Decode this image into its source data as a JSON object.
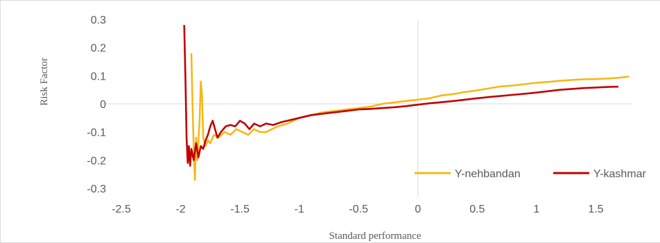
{
  "chart_data": {
    "type": "line",
    "title": "",
    "xlabel": "Standard performance",
    "ylabel": "Risk Factor",
    "xlim": [
      -2.5,
      2
    ],
    "ylim": [
      -0.3,
      0.3
    ],
    "x_ticks": [
      "-2.5",
      "-2",
      "-1.5",
      "-1",
      "-0.5",
      "0",
      "0.5",
      "1",
      "1.5"
    ],
    "y_ticks": [
      "0.3",
      "0.2",
      "0.1",
      "0",
      "-0.1",
      "-0.2",
      "-0.3"
    ],
    "grid": false,
    "legend_position": "bottom-right",
    "series": [
      {
        "name": "Y-nehbandan",
        "color": "#F5B915",
        "points": [
          [
            -1.91,
            0.18
          ],
          [
            -1.9,
            0.0
          ],
          [
            -1.89,
            -0.16
          ],
          [
            -1.88,
            -0.27
          ],
          [
            -1.87,
            -0.12
          ],
          [
            -1.86,
            -0.2
          ],
          [
            -1.84,
            -0.06
          ],
          [
            -1.83,
            0.08
          ],
          [
            -1.82,
            0.03
          ],
          [
            -1.81,
            -0.12
          ],
          [
            -1.79,
            -0.15
          ],
          [
            -1.77,
            -0.13
          ],
          [
            -1.75,
            -0.14
          ],
          [
            -1.72,
            -0.11
          ],
          [
            -1.68,
            -0.12
          ],
          [
            -1.63,
            -0.1
          ],
          [
            -1.58,
            -0.11
          ],
          [
            -1.53,
            -0.09
          ],
          [
            -1.48,
            -0.1
          ],
          [
            -1.43,
            -0.11
          ],
          [
            -1.38,
            -0.09
          ],
          [
            -1.33,
            -0.1
          ],
          [
            -1.28,
            -0.1
          ],
          [
            -1.23,
            -0.09
          ],
          [
            -1.18,
            -0.08
          ],
          [
            -1.1,
            -0.07
          ],
          [
            -1.0,
            -0.05
          ],
          [
            -0.9,
            -0.04
          ],
          [
            -0.8,
            -0.03
          ],
          [
            -0.7,
            -0.025
          ],
          [
            -0.6,
            -0.02
          ],
          [
            -0.5,
            -0.015
          ],
          [
            -0.4,
            -0.01
          ],
          [
            -0.3,
            0.0
          ],
          [
            -0.2,
            0.005
          ],
          [
            -0.1,
            0.01
          ],
          [
            0.0,
            0.015
          ],
          [
            0.1,
            0.02
          ],
          [
            0.2,
            0.03
          ],
          [
            0.3,
            0.035
          ],
          [
            0.4,
            0.042
          ],
          [
            0.5,
            0.048
          ],
          [
            0.6,
            0.055
          ],
          [
            0.7,
            0.062
          ],
          [
            0.8,
            0.065
          ],
          [
            0.9,
            0.07
          ],
          [
            1.0,
            0.075
          ],
          [
            1.1,
            0.078
          ],
          [
            1.2,
            0.082
          ],
          [
            1.3,
            0.085
          ],
          [
            1.4,
            0.087
          ],
          [
            1.5,
            0.088
          ],
          [
            1.6,
            0.09
          ],
          [
            1.7,
            0.093
          ],
          [
            1.78,
            0.097
          ]
        ]
      },
      {
        "name": "Y-kashmar",
        "color": "#C00000",
        "points": [
          [
            -1.97,
            0.28
          ],
          [
            -1.96,
            0.1
          ],
          [
            -1.95,
            -0.12
          ],
          [
            -1.94,
            -0.21
          ],
          [
            -1.93,
            -0.15
          ],
          [
            -1.92,
            -0.22
          ],
          [
            -1.91,
            -0.16
          ],
          [
            -1.89,
            -0.2
          ],
          [
            -1.87,
            -0.14
          ],
          [
            -1.85,
            -0.19
          ],
          [
            -1.83,
            -0.15
          ],
          [
            -1.81,
            -0.16
          ],
          [
            -1.79,
            -0.13
          ],
          [
            -1.77,
            -0.11
          ],
          [
            -1.75,
            -0.08
          ],
          [
            -1.73,
            -0.06
          ],
          [
            -1.71,
            -0.09
          ],
          [
            -1.69,
            -0.12
          ],
          [
            -1.66,
            -0.1
          ],
          [
            -1.62,
            -0.08
          ],
          [
            -1.58,
            -0.075
          ],
          [
            -1.54,
            -0.08
          ],
          [
            -1.5,
            -0.06
          ],
          [
            -1.46,
            -0.07
          ],
          [
            -1.42,
            -0.09
          ],
          [
            -1.38,
            -0.07
          ],
          [
            -1.33,
            -0.08
          ],
          [
            -1.28,
            -0.07
          ],
          [
            -1.22,
            -0.075
          ],
          [
            -1.15,
            -0.065
          ],
          [
            -1.1,
            -0.06
          ],
          [
            -1.0,
            -0.05
          ],
          [
            -0.9,
            -0.04
          ],
          [
            -0.8,
            -0.035
          ],
          [
            -0.7,
            -0.03
          ],
          [
            -0.6,
            -0.025
          ],
          [
            -0.5,
            -0.02
          ],
          [
            -0.4,
            -0.018
          ],
          [
            -0.3,
            -0.015
          ],
          [
            -0.2,
            -0.012
          ],
          [
            -0.1,
            -0.008
          ],
          [
            0.0,
            -0.003
          ],
          [
            0.1,
            0.002
          ],
          [
            0.2,
            0.006
          ],
          [
            0.3,
            0.01
          ],
          [
            0.4,
            0.015
          ],
          [
            0.5,
            0.02
          ],
          [
            0.6,
            0.024
          ],
          [
            0.7,
            0.028
          ],
          [
            0.8,
            0.032
          ],
          [
            0.9,
            0.036
          ],
          [
            1.0,
            0.04
          ],
          [
            1.1,
            0.045
          ],
          [
            1.2,
            0.05
          ],
          [
            1.3,
            0.053
          ],
          [
            1.4,
            0.056
          ],
          [
            1.5,
            0.058
          ],
          [
            1.6,
            0.06
          ],
          [
            1.69,
            0.061
          ]
        ]
      }
    ]
  }
}
